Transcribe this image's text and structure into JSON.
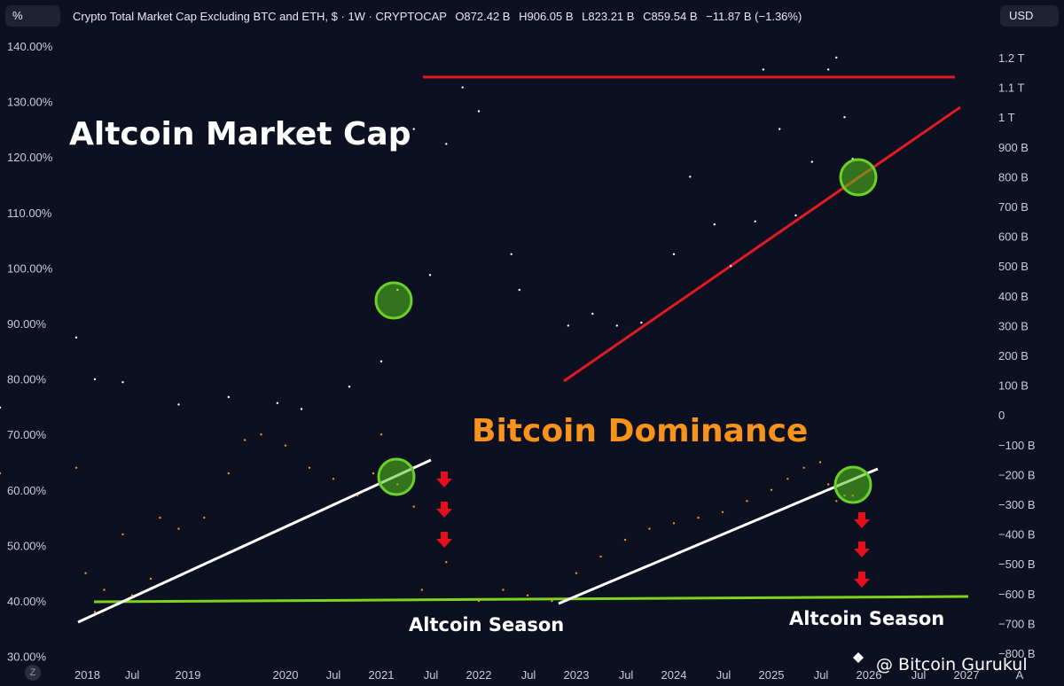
{
  "toolbar": {
    "scale_label": "%",
    "currency_label": "USD"
  },
  "header": {
    "symbol": "Crypto Total Market Cap Excluding BTC and ETH, $ · 1W · CRYPTOCAP",
    "open": "O872.42 B",
    "high": "H906.05 B",
    "low": "L823.21 B",
    "close": "C859.54 B",
    "change": "−11.87 B (−1.36%)"
  },
  "annotations": {
    "altcoin_title": "Altcoin Market Cap",
    "dominance_title": "Bitcoin Dominance",
    "season_1": "Altcoin Season",
    "season_2": "Altcoin Season",
    "watermark": "@ Bitcoin Gurukul",
    "zoom_glyph": "Z"
  },
  "colors": {
    "background": "#0c1020",
    "altcap": "#ffffff",
    "dominance": "#f7931a",
    "resistance": "#e01b24",
    "support_trend": "#e01b24",
    "dominance_trend": "#ffffff",
    "dominance_floor": "#7ed321",
    "highlight_circle": "#56c41e",
    "down_arrow": "#e3101c"
  },
  "chart_data": [
    {
      "type": "line",
      "name": "Altcoin Market Cap",
      "unit": "USD",
      "ylim_right": [
        -800,
        1200
      ],
      "right_ticks": [
        "1.2 T",
        "1.1 T",
        "1 T",
        "900 B",
        "800 B",
        "700 B",
        "600 B",
        "500 B",
        "400 B",
        "300 B",
        "200 B",
        "100 B",
        "0",
        "−100 B",
        "−200 B",
        "−300 B",
        "−400 B",
        "−500 B",
        "−600 B",
        "−700 B",
        "−800 B"
      ],
      "x": [
        "2017-12",
        "2018-01",
        "2018-03",
        "2018-06",
        "2018-12",
        "2019-06",
        "2019-12",
        "2020-03",
        "2020-09",
        "2021-01",
        "2021-03",
        "2021-05",
        "2021-07",
        "2021-09",
        "2021-11",
        "2022-01",
        "2022-05",
        "2022-06",
        "2022-12",
        "2023-03",
        "2023-06",
        "2023-09",
        "2024-01",
        "2024-03",
        "2024-06",
        "2024-08",
        "2024-11",
        "2024-12",
        "2025-02",
        "2025-04",
        "2025-06",
        "2025-08",
        "2025-09",
        "2025-10",
        "2025-11"
      ],
      "values": [
        25,
        260,
        120,
        110,
        35,
        60,
        40,
        20,
        95,
        180,
        420,
        960,
        470,
        910,
        1100,
        1020,
        540,
        420,
        300,
        340,
        300,
        310,
        540,
        800,
        640,
        500,
        650,
        1160,
        960,
        670,
        850,
        1160,
        1200,
        1000,
        860
      ],
      "annotations": {
        "resistance": 1140,
        "rising_support": [
          [
            "2022-06",
            120
          ],
          [
            "2026-09",
            1040
          ]
        ]
      }
    },
    {
      "type": "line",
      "name": "Bitcoin Dominance",
      "unit": "%",
      "ylim_left": [
        30,
        140
      ],
      "left_ticks": [
        "140.00%",
        "130.00%",
        "120.00%",
        "110.00%",
        "100.00%",
        "90.00%",
        "80.00%",
        "70.00%",
        "60.00%",
        "50.00%",
        "40.00%",
        "30.00%"
      ],
      "x_ticks": [
        "2018",
        "Jul",
        "2019",
        "2020",
        "Jul",
        "2021",
        "Jul",
        "2022",
        "Jul",
        "2023",
        "Jul",
        "2024",
        "Jul",
        "2025",
        "Jul",
        "2026",
        "Jul",
        "2027",
        "A"
      ],
      "x": [
        "2017-12",
        "2018-01",
        "2018-02",
        "2018-03",
        "2018-04",
        "2018-06",
        "2018-07",
        "2018-09",
        "2018-10",
        "2018-12",
        "2019-03",
        "2019-06",
        "2019-08",
        "2019-10",
        "2020-01",
        "2020-04",
        "2020-07",
        "2020-10",
        "2020-12",
        "2021-01",
        "2021-03",
        "2021-05",
        "2021-06",
        "2021-09",
        "2022-01",
        "2022-04",
        "2022-07",
        "2022-10",
        "2023-01",
        "2023-04",
        "2023-07",
        "2023-10",
        "2024-01",
        "2024-04",
        "2024-07",
        "2024-10",
        "2025-01",
        "2025-03",
        "2025-05",
        "2025-07",
        "2025-08",
        "2025-09",
        "2025-10",
        "2025-11"
      ],
      "values": [
        63,
        64,
        45,
        38,
        42,
        52,
        41,
        44,
        55,
        53,
        55,
        63,
        69,
        70,
        68,
        64,
        62,
        59,
        63,
        70,
        61,
        57,
        42,
        47,
        40,
        42,
        41,
        40,
        45,
        48,
        51,
        53,
        54,
        55,
        56,
        58,
        60,
        62,
        64,
        65,
        61,
        58,
        59,
        59
      ],
      "annotations": {
        "floor": 40.5,
        "rising_trend_1": [
          [
            "2017-11",
            38
          ],
          [
            "2021-08",
            66
          ]
        ],
        "rising_trend_2": [
          [
            "2022-10",
            40
          ],
          [
            "2026-01",
            63
          ]
        ]
      }
    }
  ]
}
